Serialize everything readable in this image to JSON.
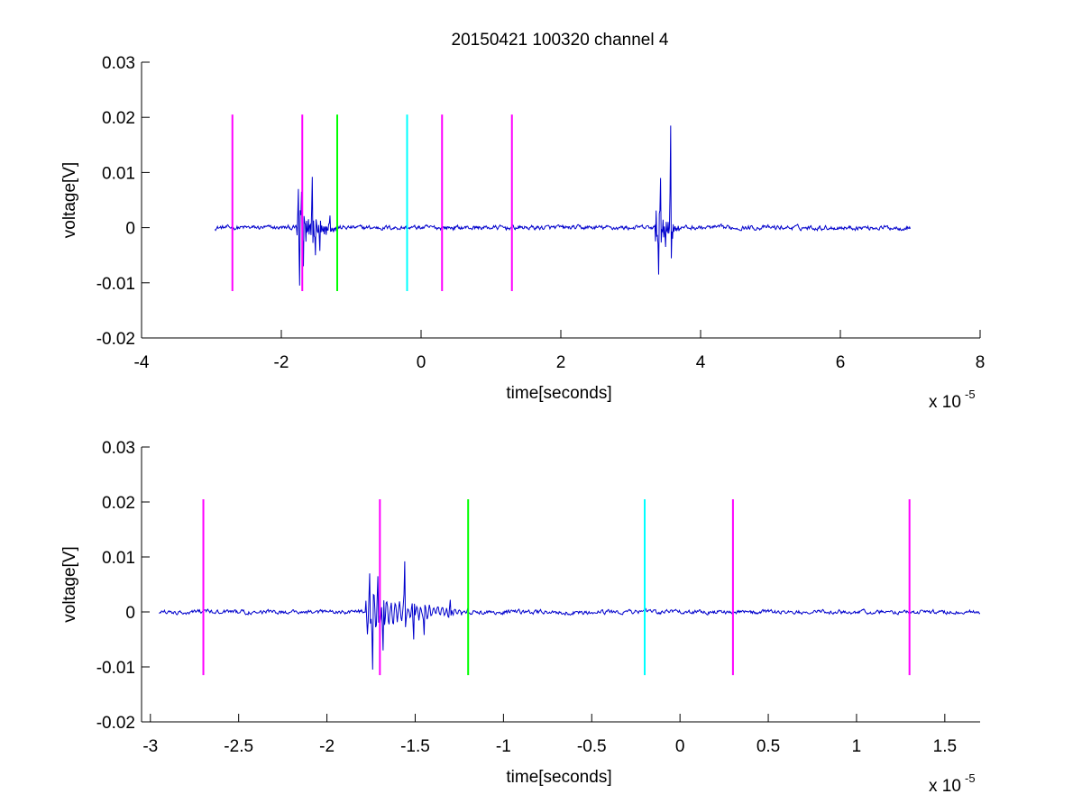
{
  "figure_title": "20150421 100320 channel 4",
  "colors": {
    "background": "#ffffff",
    "axes": "#000000",
    "signal": "#0000cc",
    "magenta": "#ff00ff",
    "green": "#00ff00",
    "cyan": "#00ffff"
  },
  "chart_data": [
    {
      "type": "line",
      "title": "20150421 100320 channel 4",
      "xlabel": "time[seconds]",
      "ylabel": "voltage[V]",
      "x_multiplier_base": "x 10",
      "x_multiplier_exp": "-5",
      "xlim": [
        -4,
        8
      ],
      "ylim": [
        -0.02,
        0.03
      ],
      "xticks": [
        -4,
        -2,
        0,
        2,
        4,
        6,
        8
      ],
      "xtick_labels": [
        "-4",
        "-2",
        "0",
        "2",
        "4",
        "6",
        "8"
      ],
      "yticks": [
        -0.02,
        -0.01,
        0,
        0.01,
        0.02,
        0.03
      ],
      "ytick_labels": [
        "-0.02",
        "-0.01",
        "0",
        "0.01",
        "0.02",
        "0.03"
      ],
      "grid": false,
      "signal": {
        "x_start": -2.95,
        "x_end": 7.0,
        "baseline": 0,
        "noise_amplitude": 0.0004,
        "bursts": [
          {
            "x_start": -1.78,
            "x_end": -1.2,
            "peaks": [
              [
                -1.76,
                0.007
              ],
              [
                -1.74,
                -0.0105
              ],
              [
                -1.71,
                0.0065
              ],
              [
                -1.68,
                -0.007
              ],
              [
                -1.56,
                0.0092
              ],
              [
                -1.51,
                -0.005
              ],
              [
                -1.45,
                -0.0042
              ],
              [
                -1.3,
                0.0022
              ]
            ]
          },
          {
            "x_start": 3.35,
            "x_end": 3.7,
            "peaks": [
              [
                3.4,
                -0.0085
              ],
              [
                3.43,
                0.009
              ],
              [
                3.5,
                -0.0035
              ],
              [
                3.57,
                0.0185
              ],
              [
                3.6,
                -0.002
              ]
            ]
          }
        ]
      },
      "markers": [
        {
          "x": -2.7,
          "color": "magenta",
          "y_range": [
            -0.0115,
            0.0205
          ]
        },
        {
          "x": -1.7,
          "color": "magenta",
          "y_range": [
            -0.0115,
            0.0205
          ]
        },
        {
          "x": -1.2,
          "color": "green",
          "y_range": [
            -0.0115,
            0.0205
          ]
        },
        {
          "x": -0.2,
          "color": "cyan",
          "y_range": [
            -0.0115,
            0.0205
          ]
        },
        {
          "x": 0.3,
          "color": "magenta",
          "y_range": [
            -0.0115,
            0.0205
          ]
        },
        {
          "x": 1.3,
          "color": "magenta",
          "y_range": [
            -0.0115,
            0.0205
          ]
        }
      ]
    },
    {
      "type": "line",
      "title": "",
      "xlabel": "time[seconds]",
      "ylabel": "voltage[V]",
      "x_multiplier_base": "x 10",
      "x_multiplier_exp": "-5",
      "xlim": [
        -3.05,
        1.7
      ],
      "ylim": [
        -0.02,
        0.03
      ],
      "xticks": [
        -3,
        -2.5,
        -2,
        -1.5,
        -1,
        -0.5,
        0,
        0.5,
        1,
        1.5
      ],
      "xtick_labels": [
        "-3",
        "-2.5",
        "-2",
        "-1.5",
        "-1",
        "-0.5",
        "0",
        "0.5",
        "1",
        "1.5"
      ],
      "yticks": [
        -0.02,
        -0.01,
        0,
        0.01,
        0.02,
        0.03
      ],
      "ytick_labels": [
        "-0.02",
        "-0.01",
        "0",
        "0.01",
        "0.02",
        "0.03"
      ],
      "grid": false,
      "signal": {
        "x_start": -2.95,
        "x_end": 1.7,
        "baseline": 0,
        "noise_amplitude": 0.0004,
        "bursts": [
          {
            "x_start": -1.78,
            "x_end": -1.2,
            "peaks": [
              [
                -1.76,
                0.007
              ],
              [
                -1.74,
                -0.0105
              ],
              [
                -1.71,
                0.0065
              ],
              [
                -1.68,
                -0.007
              ],
              [
                -1.56,
                0.0092
              ],
              [
                -1.51,
                -0.005
              ],
              [
                -1.45,
                -0.0042
              ],
              [
                -1.3,
                0.0022
              ]
            ]
          }
        ]
      },
      "markers": [
        {
          "x": -2.7,
          "color": "magenta",
          "y_range": [
            -0.0115,
            0.0205
          ]
        },
        {
          "x": -1.7,
          "color": "magenta",
          "y_range": [
            -0.0115,
            0.0205
          ]
        },
        {
          "x": -1.2,
          "color": "green",
          "y_range": [
            -0.0115,
            0.0205
          ]
        },
        {
          "x": -0.2,
          "color": "cyan",
          "y_range": [
            -0.0115,
            0.0205
          ]
        },
        {
          "x": 0.3,
          "color": "magenta",
          "y_range": [
            -0.0115,
            0.0205
          ]
        },
        {
          "x": 1.3,
          "color": "magenta",
          "y_range": [
            -0.0115,
            0.0205
          ]
        }
      ]
    }
  ]
}
